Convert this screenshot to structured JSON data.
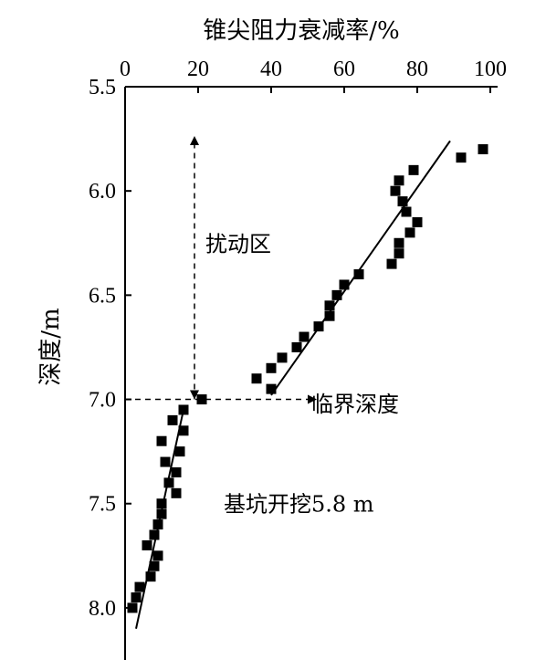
{
  "chart_data": {
    "type": "scatter",
    "title": "",
    "xlabel": "锥尖阻力衰减率/%",
    "ylabel": "深度/m",
    "x_axis_position": "top",
    "y_axis_inverted": true,
    "xlim": [
      0,
      100
    ],
    "ylim": [
      5.5,
      8.25
    ],
    "x_ticks": [
      "0",
      "20",
      "40",
      "60",
      "80",
      "100"
    ],
    "y_ticks": [
      "5.5",
      "6.0",
      "6.5",
      "7.0",
      "7.5",
      "8.0"
    ],
    "grid": false,
    "legend": "none",
    "series": [
      {
        "points": [
          [
            98,
            5.8
          ],
          [
            92,
            5.84
          ],
          [
            79,
            5.9
          ],
          [
            75,
            5.95
          ],
          [
            74,
            6.0
          ],
          [
            76,
            6.05
          ],
          [
            77,
            6.1
          ],
          [
            80,
            6.15
          ],
          [
            78,
            6.2
          ],
          [
            75,
            6.25
          ],
          [
            75,
            6.3
          ],
          [
            73,
            6.35
          ],
          [
            64,
            6.4
          ],
          [
            60,
            6.45
          ],
          [
            58,
            6.5
          ],
          [
            56,
            6.55
          ],
          [
            56,
            6.6
          ],
          [
            53,
            6.65
          ],
          [
            49,
            6.7
          ],
          [
            47,
            6.75
          ],
          [
            43,
            6.8
          ],
          [
            40,
            6.85
          ],
          [
            36,
            6.9
          ],
          [
            40,
            6.95
          ],
          [
            21,
            7.0
          ],
          [
            16,
            7.05
          ],
          [
            13,
            7.1
          ],
          [
            16,
            7.15
          ],
          [
            10,
            7.2
          ],
          [
            15,
            7.25
          ],
          [
            11,
            7.3
          ],
          [
            14,
            7.35
          ],
          [
            12,
            7.4
          ],
          [
            14,
            7.45
          ],
          [
            10,
            7.5
          ],
          [
            10,
            7.55
          ],
          [
            9,
            7.6
          ],
          [
            8,
            7.65
          ],
          [
            6,
            7.7
          ],
          [
            9,
            7.75
          ],
          [
            8,
            7.8
          ],
          [
            7,
            7.85
          ],
          [
            4,
            7.9
          ],
          [
            3,
            7.95
          ],
          [
            2,
            8.0
          ]
        ]
      }
    ],
    "fit_lines": [
      {
        "x": [
          3,
          16
        ],
        "y": [
          8.1,
          7.05
        ]
      },
      {
        "x": [
          40,
          89
        ],
        "y": [
          6.98,
          5.76
        ]
      }
    ],
    "critical_depth": {
      "x": 19,
      "y": 7.0
    },
    "annotations": [
      {
        "text": "扰动区",
        "x": 22,
        "y": 6.25
      },
      {
        "text": "临界深度",
        "x": 51,
        "y": 7.02
      },
      {
        "text": "基坑开挖5.8 m",
        "x": 27,
        "y": 7.5
      }
    ]
  }
}
